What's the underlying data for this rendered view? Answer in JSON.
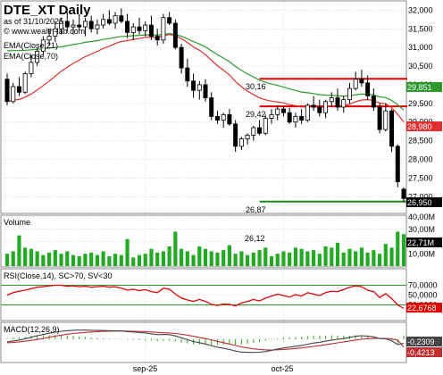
{
  "header": {
    "title": "DTE_XT Daily",
    "asof": "as of 31/10/2025",
    "site": "© www.wealth-lab.com",
    "legend": [
      "EMA(Close,21)",
      "EMA(Close,70)"
    ]
  },
  "colors": {
    "up": "#000000",
    "down": "#000000",
    "ema21": "#e03030",
    "ema70": "#2e9a2e",
    "resistance": "#e00000",
    "support": "#1a8a1a",
    "volume": "#22aa22",
    "rsi": "#e00000",
    "macd": "#444444",
    "signal": "#c03030",
    "hist": "#22aa22",
    "grid": "#a8c8a8"
  },
  "chart_data": [
    {
      "type": "candlestick",
      "title": "DTE_XT Daily",
      "ylim": [
        26600,
        32200
      ],
      "y_ticks": [
        32000,
        31500,
        31000,
        30500,
        30000,
        29500,
        29000,
        28500,
        28000,
        27500,
        27000
      ],
      "y_tick_labels": [
        "32,000",
        "31,500",
        "31,000",
        "30,500",
        "30,000",
        "29,500",
        "29,000",
        "28,500",
        "28,000",
        "27,500",
        "27,000"
      ],
      "x_labels": [
        {
          "index": 23,
          "label": "sep-25"
        },
        {
          "index": 46,
          "label": "oct-25"
        }
      ],
      "ohlc": [
        [
          30150,
          30300,
          29450,
          29550
        ],
        [
          29550,
          30050,
          29500,
          29950
        ],
        [
          29950,
          30200,
          29700,
          29800
        ],
        [
          29800,
          30350,
          29750,
          30300
        ],
        [
          30300,
          30800,
          30200,
          30600
        ],
        [
          30600,
          31000,
          30500,
          30900
        ],
        [
          30900,
          31300,
          30800,
          31200
        ],
        [
          31200,
          31500,
          31050,
          31300
        ],
        [
          31300,
          31700,
          31150,
          31500
        ],
        [
          31500,
          31800,
          31350,
          31700
        ],
        [
          31700,
          31950,
          31400,
          31550
        ],
        [
          31550,
          31750,
          31350,
          31600
        ],
        [
          31600,
          31900,
          31450,
          31550
        ],
        [
          31550,
          31800,
          31300,
          31700
        ],
        [
          31700,
          31850,
          31400,
          31500
        ],
        [
          31500,
          31750,
          31350,
          31600
        ],
        [
          31600,
          31900,
          31500,
          31750
        ],
        [
          31750,
          32000,
          31600,
          31650
        ],
        [
          31650,
          31950,
          31500,
          31850
        ],
        [
          31850,
          32050,
          31650,
          31700
        ],
        [
          31700,
          31900,
          31250,
          31400
        ],
        [
          31400,
          31650,
          31200,
          31550
        ],
        [
          31550,
          31800,
          31350,
          31450
        ],
        [
          31450,
          31700,
          31300,
          31600
        ],
        [
          31600,
          31850,
          31200,
          31300
        ],
        [
          31300,
          31500,
          31050,
          31200
        ],
        [
          31200,
          31900,
          31100,
          31800
        ],
        [
          31800,
          31950,
          31600,
          31650
        ],
        [
          31650,
          31750,
          30950,
          31000
        ],
        [
          31000,
          31100,
          30300,
          30450
        ],
        [
          30450,
          30700,
          29950,
          30100
        ],
        [
          30100,
          30300,
          29650,
          29850
        ],
        [
          29850,
          30100,
          29600,
          30000
        ],
        [
          30000,
          30150,
          29550,
          29650
        ],
        [
          29650,
          29800,
          29050,
          29150
        ],
        [
          29150,
          29300,
          28950,
          29050
        ],
        [
          29050,
          29250,
          28850,
          29200
        ],
        [
          29200,
          29350,
          28900,
          28950
        ],
        [
          28950,
          29050,
          28200,
          28350
        ],
        [
          28350,
          28600,
          28250,
          28550
        ],
        [
          28550,
          28700,
          28400,
          28650
        ],
        [
          28650,
          28900,
          28500,
          28850
        ],
        [
          28850,
          29050,
          28650,
          28700
        ],
        [
          28700,
          29200,
          28650,
          29100
        ],
        [
          29100,
          29350,
          28950,
          29200
        ],
        [
          29200,
          29450,
          29050,
          29350
        ],
        [
          29350,
          29420,
          29150,
          29250
        ],
        [
          29250,
          29380,
          28950,
          29000
        ],
        [
          29000,
          29250,
          28850,
          29150
        ],
        [
          29150,
          29350,
          28950,
          29050
        ],
        [
          29050,
          29500,
          29000,
          29450
        ],
        [
          29450,
          29700,
          29300,
          29400
        ],
        [
          29400,
          29600,
          29150,
          29250
        ],
        [
          29250,
          29600,
          29100,
          29550
        ],
        [
          29550,
          29800,
          29400,
          29650
        ],
        [
          29650,
          29900,
          29300,
          29400
        ],
        [
          29400,
          29700,
          29250,
          29600
        ],
        [
          29600,
          30050,
          29500,
          29900
        ],
        [
          29900,
          30350,
          29850,
          30150
        ],
        [
          30150,
          30400,
          29950,
          30050
        ],
        [
          30050,
          30250,
          29600,
          29700
        ],
        [
          29700,
          29900,
          29300,
          29400
        ],
        [
          29400,
          29500,
          28700,
          28800
        ],
        [
          28800,
          29500,
          28750,
          29300
        ],
        [
          29300,
          29350,
          28200,
          28350
        ],
        [
          28350,
          28400,
          27250,
          27400
        ],
        [
          27200,
          27250,
          26850,
          26950
        ]
      ]
    },
    {
      "type": "volume_bar",
      "title": "Volume",
      "last_value_label": "22,71M",
      "annotation": "26,12",
      "y_tick_labels": [
        "40,00M",
        "30,00M",
        "20,00M",
        "10,00M"
      ],
      "ylim": [
        0,
        40
      ],
      "values": [
        10,
        12,
        25,
        15,
        14,
        12,
        9,
        11,
        13,
        10,
        12,
        9,
        8,
        10,
        11,
        9,
        12,
        8,
        10,
        9,
        22,
        7,
        9,
        10,
        14,
        11,
        12,
        16,
        28,
        14,
        12,
        9,
        16,
        14,
        12,
        11,
        13,
        17,
        10,
        12,
        9,
        11,
        13,
        15,
        8,
        10,
        12,
        11,
        15,
        14,
        12,
        13,
        10,
        16,
        15,
        19,
        11,
        14,
        12,
        15,
        11,
        13,
        10,
        18,
        15,
        28,
        26
      ]
    },
    {
      "type": "line",
      "title": "RSI(Close,14), SC>70, SV<30",
      "last_value_label": "22,6768",
      "y_tick_labels": [
        "70,0000",
        "50,0000",
        "30,0000"
      ],
      "ylim": [
        0,
        100
      ],
      "values": [
        50,
        55,
        58,
        60,
        63,
        66,
        67,
        69,
        70,
        70,
        68,
        69,
        67,
        68,
        66,
        67,
        68,
        66,
        67,
        64,
        60,
        62,
        59,
        61,
        57,
        55,
        64,
        62,
        52,
        44,
        40,
        37,
        41,
        37,
        31,
        29,
        32,
        31,
        28,
        34,
        37,
        41,
        38,
        44,
        48,
        52,
        49,
        46,
        51,
        48,
        55,
        52,
        49,
        55,
        58,
        57,
        61,
        66,
        69,
        67,
        60,
        57,
        45,
        53,
        43,
        30,
        22.68
      ],
      "thresholds": [
        70,
        30
      ]
    },
    {
      "type": "line",
      "title": "MACD(12,26,9)",
      "series": [
        {
          "name": "MACD",
          "last_value_label": "-0,2309"
        },
        {
          "name": "Signal",
          "last_value_label": "-0,4213"
        }
      ],
      "ylim": [
        -1.2,
        0.8
      ],
      "macd": [
        -0.15,
        -0.1,
        -0.05,
        0.02,
        0.1,
        0.18,
        0.25,
        0.31,
        0.37,
        0.42,
        0.45,
        0.47,
        0.48,
        0.48,
        0.47,
        0.46,
        0.46,
        0.45,
        0.45,
        0.44,
        0.4,
        0.38,
        0.35,
        0.33,
        0.28,
        0.24,
        0.25,
        0.24,
        0.17,
        0.07,
        -0.03,
        -0.13,
        -0.19,
        -0.26,
        -0.35,
        -0.43,
        -0.49,
        -0.55,
        -0.64,
        -0.69,
        -0.71,
        -0.71,
        -0.7,
        -0.66,
        -0.6,
        -0.53,
        -0.47,
        -0.43,
        -0.38,
        -0.34,
        -0.27,
        -0.21,
        -0.17,
        -0.11,
        -0.05,
        -0.01,
        0.03,
        0.09,
        0.15,
        0.18,
        0.16,
        0.12,
        0.03,
        0.02,
        -0.09,
        -0.29,
        -0.23
      ],
      "signal": [
        -0.2,
        -0.18,
        -0.15,
        -0.11,
        -0.07,
        -0.02,
        0.04,
        0.1,
        0.16,
        0.21,
        0.26,
        0.3,
        0.33,
        0.36,
        0.38,
        0.4,
        0.41,
        0.42,
        0.43,
        0.43,
        0.43,
        0.42,
        0.41,
        0.4,
        0.38,
        0.36,
        0.34,
        0.33,
        0.3,
        0.26,
        0.21,
        0.15,
        0.09,
        0.03,
        -0.04,
        -0.12,
        -0.19,
        -0.26,
        -0.34,
        -0.41,
        -0.47,
        -0.52,
        -0.55,
        -0.57,
        -0.58,
        -0.57,
        -0.55,
        -0.53,
        -0.5,
        -0.47,
        -0.43,
        -0.39,
        -0.35,
        -0.3,
        -0.25,
        -0.2,
        -0.15,
        -0.1,
        -0.05,
        -0.01,
        0.02,
        0.04,
        0.04,
        0.04,
        0.01,
        -0.05,
        -0.42
      ]
    }
  ],
  "levels": {
    "top_resistance_label": "30,16",
    "mid_resistance_label": "29,42",
    "support_label": "26,87",
    "resistance_top": 30160,
    "resistance_mid": 29420,
    "support": 26870,
    "last_close_tag": "26,950",
    "ema21_tag": "28,980",
    "ema70_tag": "29,851"
  }
}
